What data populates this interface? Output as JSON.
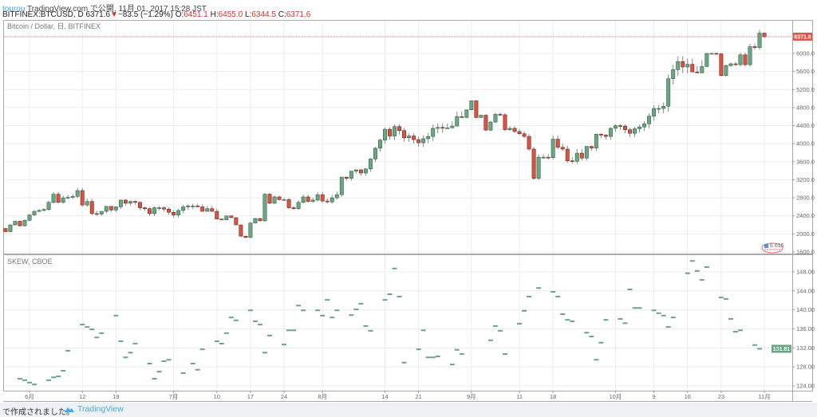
{
  "header": {
    "user": "tourou",
    "published": "TradingView.com で公開, 11月 01, 2017 15:28 JST",
    "symbol": "BITFINEX:BTCUSD, D",
    "last": "6371.6",
    "change": "−83.5 (−1.29%)",
    "open_label": "O:",
    "open": "6451.1",
    "high_label": "H:",
    "high": "6455.0",
    "low_label": "L:",
    "low": "6344.5",
    "close_label": "C:",
    "close": "6371.6"
  },
  "main_pane": {
    "title": "Bitcoin / Dollar, 日, BITFINEX",
    "last_price_label": "6371.6",
    "event_marker": "6 615",
    "price_ticks": [
      "1600.0",
      "2000.0",
      "2400.0",
      "2800.0",
      "3200.0",
      "3600.0",
      "4000.0",
      "4400.0",
      "4800.0",
      "5200.0",
      "5600.0",
      "6000.0"
    ]
  },
  "skew_pane": {
    "title": "SKEW, CBOE",
    "last_value_label": "131.81",
    "ticks": [
      "124.00",
      "128.00",
      "132.00",
      "136.00",
      "140.00",
      "144.00",
      "148.00"
    ]
  },
  "date_axis": [
    {
      "label": "6月",
      "date": "2017-06-01"
    },
    {
      "label": "12",
      "date": "2017-06-12"
    },
    {
      "label": "19",
      "date": "2017-06-19"
    },
    {
      "label": "7月",
      "date": "2017-07-01"
    },
    {
      "label": "10",
      "date": "2017-07-10"
    },
    {
      "label": "17",
      "date": "2017-07-17"
    },
    {
      "label": "24",
      "date": "2017-07-24"
    },
    {
      "label": "8月",
      "date": "2017-08-01"
    },
    {
      "label": "14",
      "date": "2017-08-14"
    },
    {
      "label": "21",
      "date": "2017-08-21"
    },
    {
      "label": "9月",
      "date": "2017-09-01"
    },
    {
      "label": "11",
      "date": "2017-09-11"
    },
    {
      "label": "18",
      "date": "2017-09-18"
    },
    {
      "label": "10月",
      "date": "2017-10-01"
    },
    {
      "label": "9",
      "date": "2017-10-09"
    },
    {
      "label": "16",
      "date": "2017-10-16"
    },
    {
      "label": "23",
      "date": "2017-10-23"
    },
    {
      "label": "11月",
      "date": "2017-11-01"
    }
  ],
  "footer": {
    "text": "で作成されました。",
    "brand": "TradingView"
  },
  "colors": {
    "up": "#6ba583",
    "down": "#d75442",
    "up_border": "#225437",
    "down_border": "#5b1a13",
    "wick": "#888888",
    "skew": "#6ba583",
    "accent": "#3aa0dc",
    "last_price": "#e2554a"
  },
  "chart_data": [
    {
      "type": "candlestick",
      "title": "Bitcoin / Dollar, 日, BITFINEX",
      "ylim": [
        1600,
        6500
      ],
      "first_date": "2017-05-27",
      "first_open": 2120,
      "last_candle": {
        "o": 6451.1,
        "h": 6455.0,
        "l": 6344.5,
        "c": 6371.6
      },
      "close": [
        2050,
        2200,
        2280,
        2180,
        2300,
        2420,
        2500,
        2520,
        2540,
        2700,
        2880,
        2700,
        2800,
        2810,
        2830,
        2960,
        2640,
        2720,
        2450,
        2440,
        2500,
        2610,
        2530,
        2600,
        2750,
        2680,
        2720,
        2700,
        2580,
        2560,
        2450,
        2580,
        2580,
        2550,
        2480,
        2420,
        2520,
        2600,
        2620,
        2620,
        2600,
        2500,
        2560,
        2500,
        2330,
        2310,
        2400,
        2360,
        2200,
        1950,
        1920,
        2240,
        2340,
        2290,
        2880,
        2680,
        2820,
        2760,
        2760,
        2580,
        2560,
        2700,
        2820,
        2720,
        2750,
        2870,
        2730,
        2710,
        2800,
        2870,
        3260,
        3230,
        3390,
        3420,
        3350,
        3440,
        3660,
        3900,
        4080,
        4320,
        4170,
        4380,
        4290,
        4130,
        4170,
        4090,
        4020,
        4110,
        4160,
        4340,
        4360,
        4350,
        4350,
        4390,
        4600,
        4580,
        4750,
        4950,
        4580,
        4630,
        4300,
        4480,
        4650,
        4640,
        4310,
        4340,
        4270,
        4220,
        4160,
        3880,
        3230,
        3700,
        3700,
        3690,
        4100,
        3920,
        3880,
        3620,
        3610,
        3790,
        3680,
        3940,
        3900,
        4210,
        4190,
        4160,
        4340,
        4400,
        4390,
        4310,
        4230,
        4330,
        4370,
        4440,
        4610,
        4780,
        4780,
        4830,
        5440,
        5640,
        5820,
        5700,
        5760,
        5590,
        5570,
        5710,
        6000,
        6000,
        5990,
        5510,
        5730,
        5770,
        5750,
        5970,
        5750,
        6150,
        6130,
        6450,
        6371.6
      ]
    },
    {
      "type": "scatter",
      "title": "SKEW, CBOE",
      "ylim": [
        122,
        151
      ],
      "points": [
        [
          "2017-05-30",
          125.5
        ],
        [
          "2017-05-31",
          125.2
        ],
        [
          "2017-06-01",
          124.7
        ],
        [
          "2017-06-02",
          124.3
        ],
        [
          "2017-06-05",
          125.2
        ],
        [
          "2017-06-06",
          125.8
        ],
        [
          "2017-06-07",
          126.0
        ],
        [
          "2017-06-08",
          127.2
        ],
        [
          "2017-06-09",
          131.4
        ],
        [
          "2017-06-12",
          136.9
        ],
        [
          "2017-06-13",
          136.4
        ],
        [
          "2017-06-14",
          135.9
        ],
        [
          "2017-06-15",
          134.2
        ],
        [
          "2017-06-16",
          135.1
        ],
        [
          "2017-06-19",
          138.8
        ],
        [
          "2017-06-20",
          133.4
        ],
        [
          "2017-06-21",
          130.0
        ],
        [
          "2017-06-22",
          131.0
        ],
        [
          "2017-06-23",
          132.9
        ],
        [
          "2017-06-26",
          128.7
        ],
        [
          "2017-06-27",
          125.5
        ],
        [
          "2017-06-28",
          127.0
        ],
        [
          "2017-06-29",
          129.2
        ],
        [
          "2017-06-30",
          129.5
        ],
        [
          "2017-07-03",
          126.7
        ],
        [
          "2017-07-05",
          128.7
        ],
        [
          "2017-07-06",
          127.4
        ],
        [
          "2017-07-07",
          131.7
        ],
        [
          "2017-07-10",
          133.4
        ],
        [
          "2017-07-11",
          132.9
        ],
        [
          "2017-07-12",
          135.1
        ],
        [
          "2017-07-13",
          138.4
        ],
        [
          "2017-07-14",
          137.8
        ],
        [
          "2017-07-17",
          139.9
        ],
        [
          "2017-07-18",
          137.6
        ],
        [
          "2017-07-19",
          136.9
        ],
        [
          "2017-07-20",
          131.0
        ],
        [
          "2017-07-21",
          134.6
        ],
        [
          "2017-07-24",
          132.7
        ],
        [
          "2017-07-25",
          135.7
        ],
        [
          "2017-07-26",
          135.7
        ],
        [
          "2017-07-27",
          140.9
        ],
        [
          "2017-07-28",
          139.9
        ],
        [
          "2017-07-31",
          139.9
        ],
        [
          "2017-08-01",
          138.8
        ],
        [
          "2017-08-02",
          142.1
        ],
        [
          "2017-08-03",
          138.4
        ],
        [
          "2017-08-04",
          139.9
        ],
        [
          "2017-08-07",
          138.9
        ],
        [
          "2017-08-08",
          140.1
        ],
        [
          "2017-08-09",
          141.3
        ],
        [
          "2017-08-10",
          136.6
        ],
        [
          "2017-08-11",
          135.6
        ],
        [
          "2017-08-14",
          142.1
        ],
        [
          "2017-08-15",
          143.3
        ],
        [
          "2017-08-16",
          148.7
        ],
        [
          "2017-08-17",
          142.8
        ],
        [
          "2017-08-18",
          128.9
        ],
        [
          "2017-08-21",
          131.7
        ],
        [
          "2017-08-22",
          135.7
        ],
        [
          "2017-08-23",
          130.0
        ],
        [
          "2017-08-24",
          130.0
        ],
        [
          "2017-08-25",
          130.2
        ],
        [
          "2017-08-28",
          128.5
        ],
        [
          "2017-08-29",
          131.6
        ],
        [
          "2017-08-30",
          130.7
        ],
        [
          "2017-09-05",
          133.6
        ],
        [
          "2017-09-06",
          136.6
        ],
        [
          "2017-09-07",
          135.6
        ],
        [
          "2017-09-08",
          130.7
        ],
        [
          "2017-09-11",
          137.1
        ],
        [
          "2017-09-12",
          139.8
        ],
        [
          "2017-09-13",
          142.8
        ],
        [
          "2017-09-15",
          144.6
        ],
        [
          "2017-09-18",
          143.8
        ],
        [
          "2017-09-19",
          142.8
        ],
        [
          "2017-09-20",
          139.1
        ],
        [
          "2017-09-21",
          137.9
        ],
        [
          "2017-09-22",
          137.6
        ],
        [
          "2017-09-25",
          135.2
        ],
        [
          "2017-09-26",
          134.4
        ],
        [
          "2017-09-27",
          129.5
        ],
        [
          "2017-09-28",
          133.1
        ],
        [
          "2017-09-29",
          137.9
        ],
        [
          "2017-10-02",
          138.1
        ],
        [
          "2017-10-03",
          137.2
        ],
        [
          "2017-10-04",
          144.3
        ],
        [
          "2017-10-05",
          140.4
        ],
        [
          "2017-10-06",
          140.4
        ],
        [
          "2017-10-09",
          139.9
        ],
        [
          "2017-10-10",
          139.3
        ],
        [
          "2017-10-11",
          138.8
        ],
        [
          "2017-10-12",
          136.4
        ],
        [
          "2017-10-13",
          138.4
        ],
        [
          "2017-10-16",
          147.7
        ],
        [
          "2017-10-17",
          150.3
        ],
        [
          "2017-10-18",
          148.2
        ],
        [
          "2017-10-19",
          146.3
        ],
        [
          "2017-10-20",
          149.0
        ],
        [
          "2017-10-23",
          142.6
        ],
        [
          "2017-10-24",
          142.3
        ],
        [
          "2017-10-25",
          138.1
        ],
        [
          "2017-10-26",
          135.4
        ],
        [
          "2017-10-27",
          135.7
        ],
        [
          "2017-10-30",
          132.6
        ],
        [
          "2017-10-31",
          131.81
        ]
      ]
    }
  ]
}
